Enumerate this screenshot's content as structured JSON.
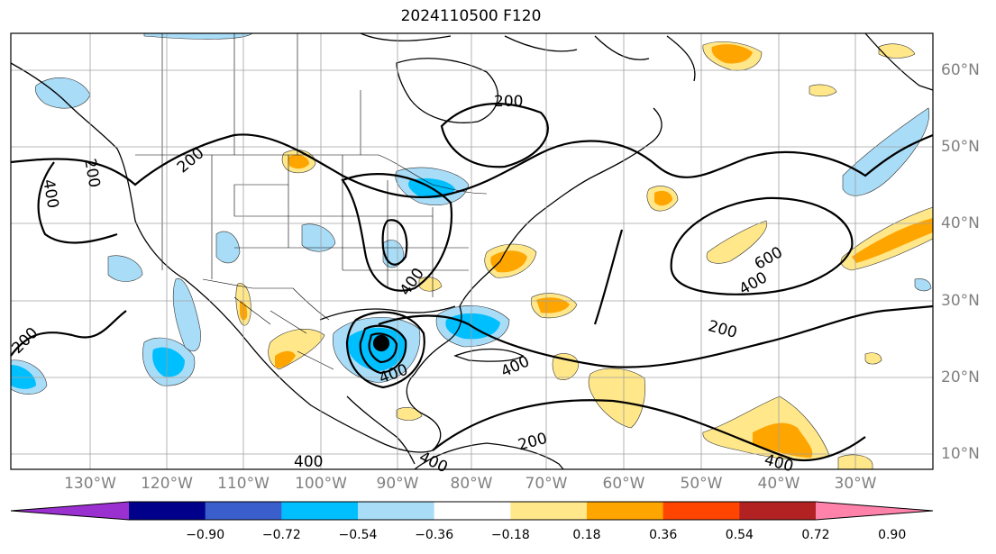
{
  "title": "2024110500 F120",
  "longitude_labels": [
    "130°W",
    "120°W",
    "110°W",
    "100°W",
    "90°W",
    "80°W",
    "70°W",
    "60°W",
    "50°W",
    "40°W",
    "30°W"
  ],
  "latitude_labels": [
    "60°N",
    "50°N",
    "40°N",
    "30°N",
    "20°N",
    "10°N"
  ],
  "contour_labels": [
    "200",
    "200",
    "200",
    "200",
    "200",
    "200",
    "400",
    "400",
    "400",
    "400",
    "400",
    "400",
    "400",
    "600",
    "400"
  ],
  "colorbar": {
    "ticks": [
      "−0.90",
      "−0.72",
      "−0.54",
      "−0.36",
      "−0.18",
      "0.18",
      "0.36",
      "0.54",
      "0.72",
      "0.90"
    ],
    "colors": [
      "#9b30d0",
      "#00008b",
      "#3a5fcd",
      "#00bfff",
      "#a9dcf7",
      "#ffffff",
      "#ffe78a",
      "#ffa500",
      "#ff4500",
      "#b22222",
      "#ff82ab"
    ],
    "extend": "both"
  },
  "colors": {
    "gridline": "#a0a0a0",
    "axis_label": "#808080",
    "contour": "#000000"
  }
}
